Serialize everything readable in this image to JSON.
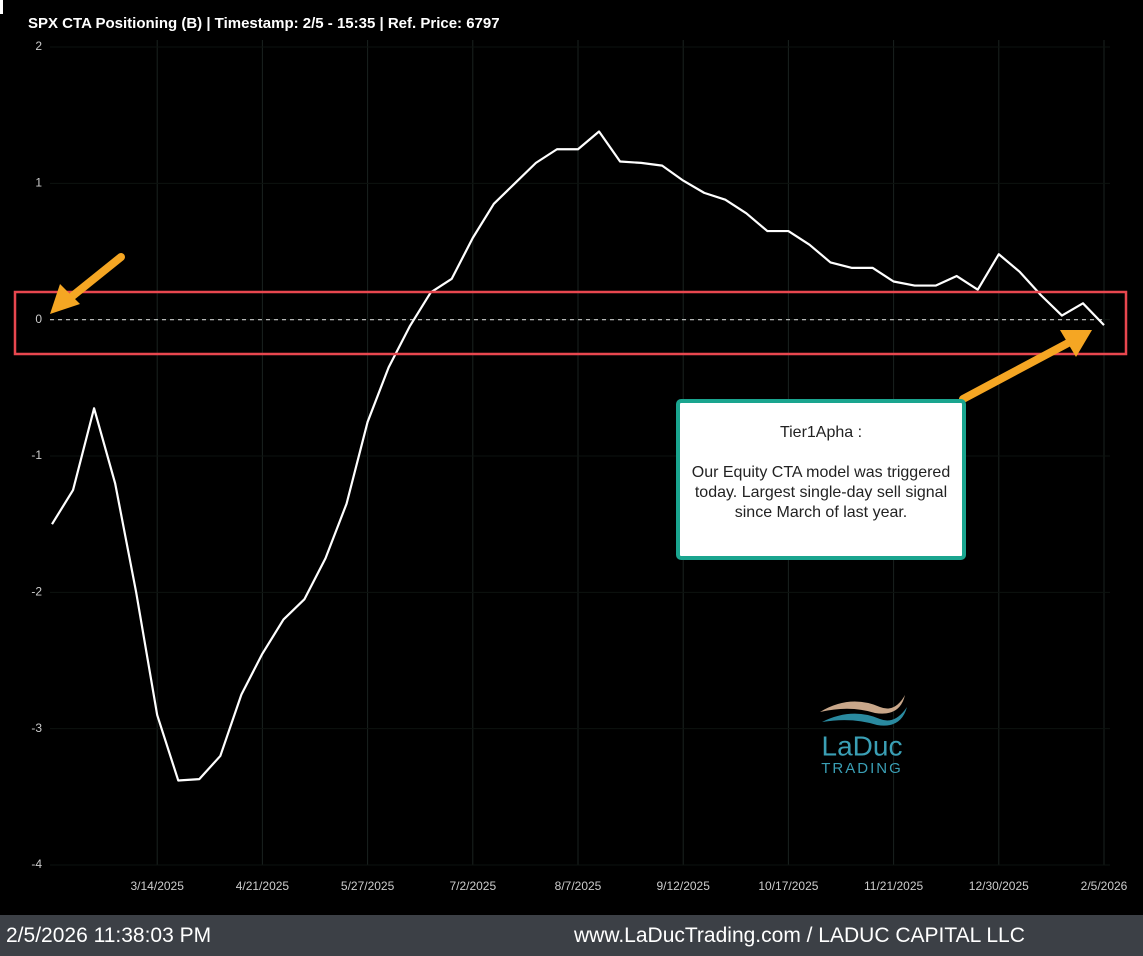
{
  "chart_data": {
    "type": "line",
    "title": "SPX CTA Positioning (B) | Timestamp: 2/5 - 15:35  | Ref. Price: 6797",
    "categories": [
      null,
      null,
      null,
      null,
      null,
      "3/14/2025",
      null,
      null,
      null,
      null,
      "4/21/2025",
      null,
      null,
      null,
      null,
      "5/27/2025",
      null,
      null,
      null,
      null,
      "7/2/2025",
      null,
      null,
      null,
      null,
      "8/7/2025",
      null,
      null,
      null,
      null,
      "9/12/2025",
      null,
      null,
      null,
      null,
      "10/17/2025",
      null,
      null,
      null,
      null,
      "11/21/2025",
      null,
      null,
      null,
      null,
      "12/30/2025",
      null,
      null,
      null,
      null,
      "2/5/2026"
    ],
    "values": [
      -1.5,
      -1.25,
      -0.65,
      -1.2,
      -2.0,
      -2.9,
      -3.38,
      -3.37,
      -3.2,
      -2.75,
      -2.45,
      -2.2,
      -2.05,
      -1.75,
      -1.35,
      -0.75,
      -0.35,
      -0.05,
      0.2,
      0.3,
      0.6,
      0.85,
      1.0,
      1.15,
      1.25,
      1.25,
      1.38,
      1.16,
      1.15,
      1.13,
      1.02,
      0.93,
      0.88,
      0.78,
      0.65,
      0.65,
      0.55,
      0.42,
      0.38,
      0.38,
      0.28,
      0.25,
      0.25,
      0.32,
      0.22,
      0.48,
      0.35,
      0.18,
      0.03,
      0.12,
      -0.04
    ],
    "color": "#ffffff",
    "ylim": [
      -4,
      2
    ],
    "yticks": [
      -4,
      -3,
      -2,
      -1,
      0,
      1,
      2
    ],
    "zero_line": 0,
    "grid": true,
    "annotation": {
      "title": "Tier1Apha :",
      "text": "Our Equity CTA model was triggered today. Largest single-day sell signal since March of last year."
    },
    "logo": {
      "name": "LaDuc",
      "sub": "TRADING"
    }
  },
  "footer": {
    "timestamp": "2/5/2026 11:38:03 PM",
    "site": "www.LaDucTrading.com / LADUC CAPITAL LLC"
  }
}
